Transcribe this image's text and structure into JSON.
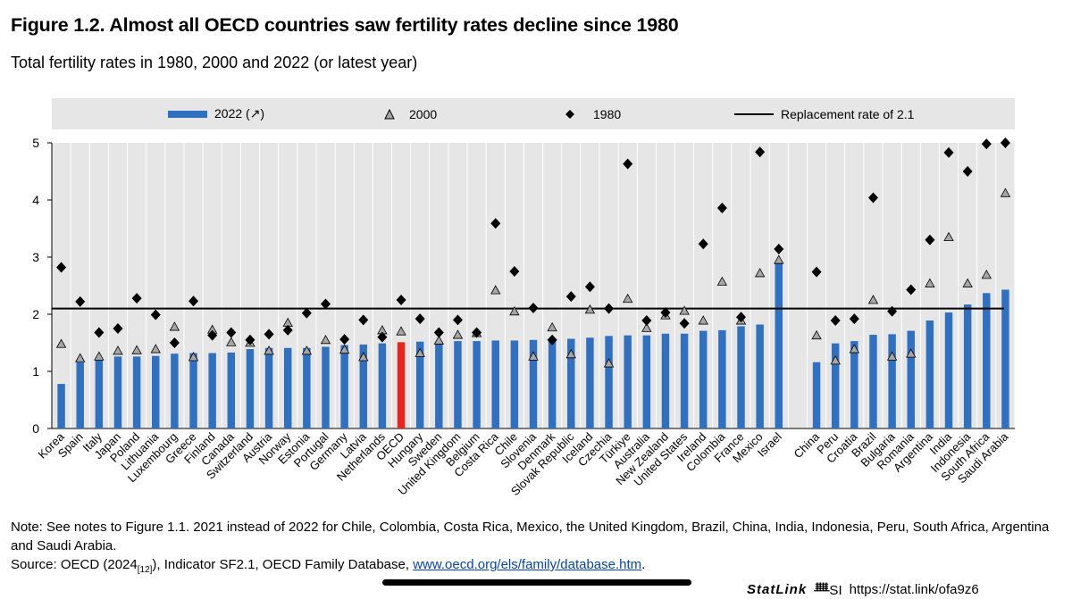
{
  "figure": {
    "title": "Figure 1.2. Almost all OECD countries saw fertility rates decline since 1980",
    "subtitle": "Total fertility rates in 1980, 2000 and 2022 (or latest year)"
  },
  "legend": {
    "bar_label": "2022 (↗)",
    "triangle_label": "2000",
    "diamond_label": "1980",
    "line_label": "Replacement rate of 2.1"
  },
  "colors": {
    "bar": "#3070c0",
    "highlight_bar": "#e8251e",
    "plot_bg": "#e6e6e6",
    "triangle_fill": "#a6a6a6"
  },
  "chart_data": {
    "type": "bar",
    "ylim": [
      0,
      5
    ],
    "yticks": [
      0,
      1,
      2,
      3,
      4,
      5
    ],
    "grid": "vertical gridlines",
    "legend_position": "top",
    "reference_line": {
      "name": "Replacement rate of 2.1",
      "value": 2.1
    },
    "highlight": "OECD",
    "gap_after": "Israel",
    "categories": [
      "Korea",
      "Spain",
      "Italy",
      "Japan",
      "Poland",
      "Lithuania",
      "Luxembourg",
      "Greece",
      "Finland",
      "Canada",
      "Switzerland",
      "Austria",
      "Norway",
      "Estonia",
      "Portugal",
      "Germany",
      "Latvia",
      "Netherlands",
      "OECD",
      "Hungary",
      "Sweden",
      "United Kingdom",
      "Belgium",
      "Costa Rica",
      "Chile",
      "Slovenia",
      "Denmark",
      "Slovak Republic",
      "Iceland",
      "Czechia",
      "Türkiye",
      "Australia",
      "New Zealand",
      "United States",
      "Ireland",
      "Colombia",
      "France",
      "Mexico",
      "Israel",
      "China",
      "Peru",
      "Croatia",
      "Brazil",
      "Bulgaria",
      "Romania",
      "Argentina",
      "India",
      "Indonesia",
      "South Africa",
      "Saudi Arabia"
    ],
    "series": [
      {
        "name": "2022 (↗)",
        "marker": "bar",
        "values": [
          0.78,
          1.16,
          1.24,
          1.26,
          1.26,
          1.27,
          1.31,
          1.32,
          1.32,
          1.33,
          1.39,
          1.41,
          1.41,
          1.41,
          1.43,
          1.46,
          1.47,
          1.49,
          1.51,
          1.52,
          1.52,
          1.53,
          1.53,
          1.54,
          1.54,
          1.55,
          1.55,
          1.57,
          1.59,
          1.62,
          1.63,
          1.63,
          1.66,
          1.66,
          1.71,
          1.72,
          1.79,
          1.82,
          2.89,
          1.16,
          1.49,
          1.53,
          1.64,
          1.65,
          1.71,
          1.89,
          2.03,
          2.17,
          2.37,
          2.43
        ]
      },
      {
        "name": "2000",
        "marker": "triangle",
        "values": [
          1.48,
          1.23,
          1.26,
          1.36,
          1.37,
          1.39,
          1.78,
          1.25,
          1.73,
          1.51,
          1.5,
          1.36,
          1.85,
          1.36,
          1.55,
          1.38,
          1.25,
          1.72,
          1.7,
          1.32,
          1.54,
          1.64,
          1.67,
          2.42,
          2.05,
          1.26,
          1.77,
          1.3,
          2.08,
          1.14,
          2.27,
          1.76,
          1.98,
          2.06,
          1.89,
          2.57,
          1.89,
          2.72,
          2.95,
          1.63,
          1.19,
          1.39,
          2.25,
          1.26,
          1.31,
          2.54,
          3.35,
          2.54,
          2.69,
          4.12
        ]
      },
      {
        "name": "1980",
        "marker": "diamond",
        "values": [
          2.82,
          2.22,
          1.68,
          1.75,
          2.28,
          1.99,
          1.5,
          2.23,
          1.63,
          1.68,
          1.55,
          1.65,
          1.72,
          2.02,
          2.18,
          1.56,
          1.9,
          1.6,
          2.25,
          1.92,
          1.68,
          1.9,
          1.68,
          3.59,
          2.75,
          2.11,
          1.55,
          2.31,
          2.48,
          2.1,
          4.63,
          1.89,
          2.03,
          1.84,
          3.23,
          3.86,
          1.95,
          4.84,
          3.14,
          2.74,
          1.89,
          1.92,
          4.04,
          2.05,
          2.43,
          3.3,
          4.83,
          4.5,
          4.98,
          5.0
        ]
      }
    ]
  },
  "footer": {
    "note": "Note: See notes to Figure 1.1. 2021 instead of 2022 for Chile, Colombia, Costa Rica, Mexico, the United Kingdom, Brazil, China, India, Indonesia, Peru, South Africa, Argentina and Saudi Arabia.",
    "source_prefix": "Source: OECD (2024",
    "source_ref": "[12]",
    "source_middle": "), Indicator SF2.1, OECD Family Database, ",
    "source_link": "www.oecd.org/els/family/database.htm",
    "source_suffix": ".",
    "statlink_brand": "StatLink",
    "statlink_logo": "ᚙSI",
    "statlink_url": "https://stat.link/ofa9z6"
  }
}
